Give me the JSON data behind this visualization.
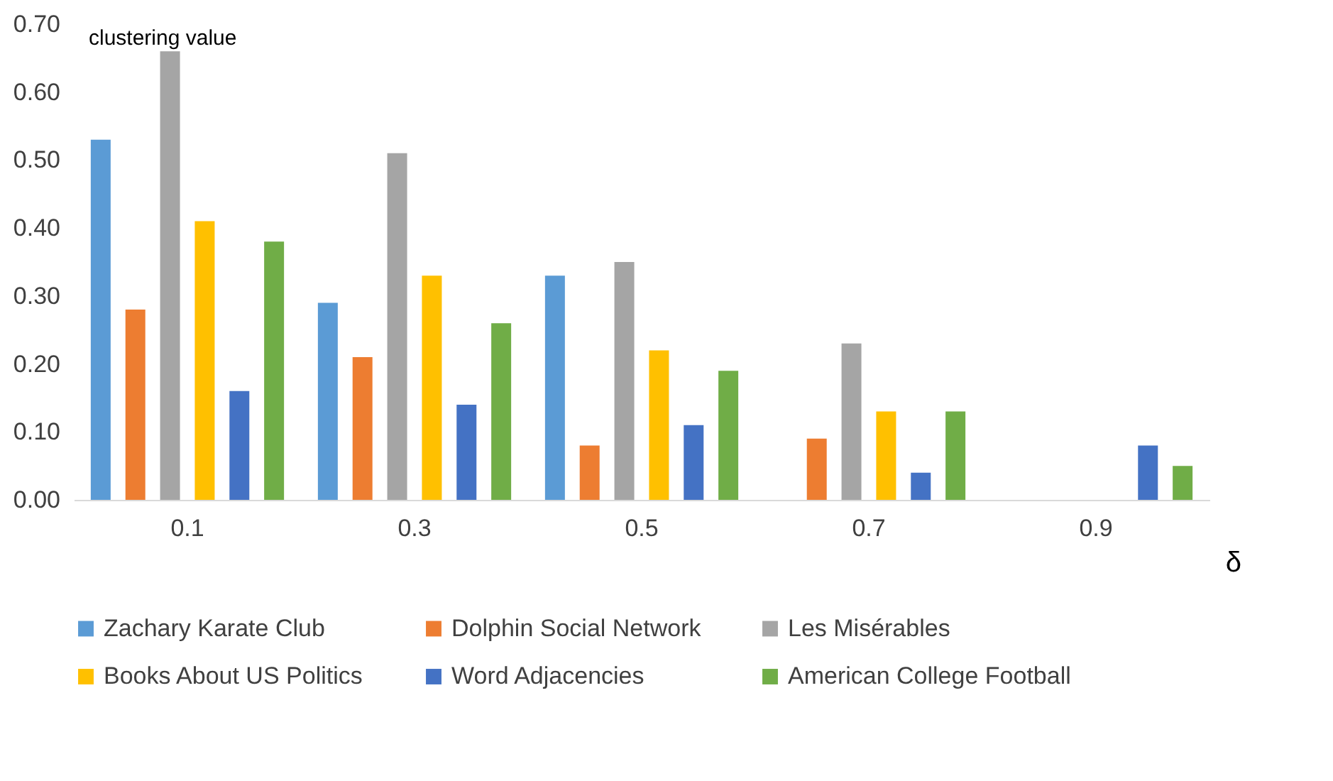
{
  "chart_data": {
    "type": "bar",
    "xlabel": "δ",
    "ylabel": "clustering value",
    "categories": [
      "0.1",
      "0.3",
      "0.5",
      "0.7",
      "0.9"
    ],
    "series": [
      {
        "name": "Zachary Karate Club",
        "color": "#5b9bd5",
        "values": [
          0.53,
          0.29,
          0.33,
          null,
          null
        ]
      },
      {
        "name": "Dolphin Social Network",
        "color": "#ed7d31",
        "values": [
          0.28,
          0.21,
          0.08,
          0.09,
          null
        ]
      },
      {
        "name": "Les Misérables",
        "color": "#a5a5a5",
        "values": [
          0.66,
          0.51,
          0.35,
          0.23,
          null
        ]
      },
      {
        "name": "Books About US Politics",
        "color": "#ffc000",
        "values": [
          0.41,
          0.33,
          0.22,
          0.13,
          null
        ]
      },
      {
        "name": "Word Adjacencies",
        "color": "#4472c4",
        "values": [
          0.16,
          0.14,
          0.11,
          0.04,
          0.08
        ]
      },
      {
        "name": "American College Football",
        "color": "#70ad47",
        "values": [
          0.38,
          0.26,
          0.19,
          0.13,
          0.05
        ]
      }
    ],
    "ylim": [
      0,
      0.7
    ],
    "yticks": [
      {
        "value": 0,
        "label": "0.00"
      },
      {
        "value": 0.1,
        "label": "0.10"
      },
      {
        "value": 0.2,
        "label": "0.20"
      },
      {
        "value": 0.3,
        "label": "0.30"
      },
      {
        "value": 0.4,
        "label": "0.40"
      },
      {
        "value": 0.5,
        "label": "0.50"
      },
      {
        "value": 0.6,
        "label": "0.60"
      },
      {
        "value": 0.7,
        "label": "0.70"
      }
    ],
    "grid": false,
    "legend": "bottom"
  }
}
